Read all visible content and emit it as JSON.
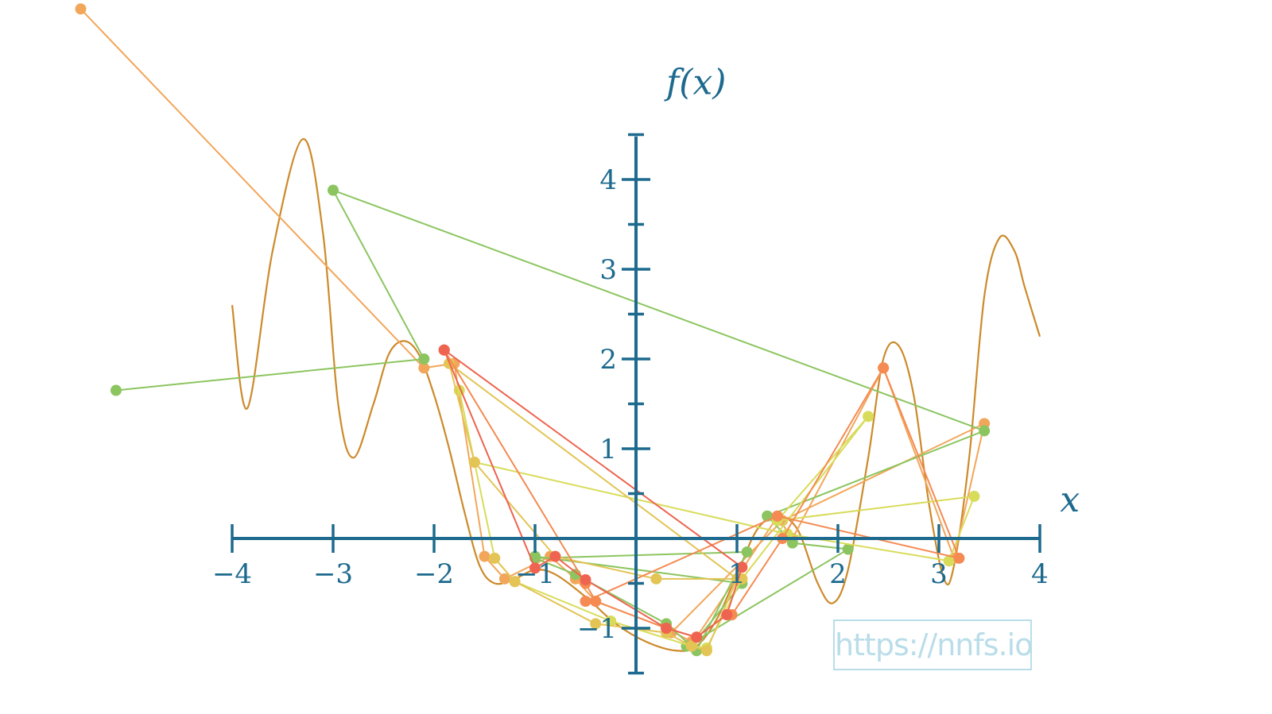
{
  "chart_data": {
    "type": "line",
    "title": "",
    "xlabel": "x",
    "ylabel": "f(x)",
    "xlim": [
      -4,
      4
    ],
    "ylim": [
      -1.5,
      4.5
    ],
    "x_ticks": [
      -4,
      -3,
      -2,
      -1,
      1,
      2,
      3,
      4
    ],
    "x_tick_labels": [
      "−4",
      "−3",
      "−2",
      "−1",
      "1",
      "2",
      "3",
      "4"
    ],
    "y_ticks": [
      -1,
      1,
      2,
      3,
      4
    ],
    "y_tick_labels": [
      "−1",
      "1",
      "2",
      "3",
      "4"
    ],
    "function_curve": {
      "color": "#cc8a2b",
      "x": [
        -4.0,
        -3.85,
        -3.6,
        -3.3,
        -3.1,
        -2.95,
        -2.8,
        -2.6,
        -2.45,
        -2.3,
        -2.15,
        -2.0,
        -1.85,
        -1.7,
        -1.55,
        -1.4,
        -1.2,
        -1.0,
        -0.8,
        -0.5,
        -0.2,
        0.1,
        0.4,
        0.6,
        0.8,
        1.0,
        1.2,
        1.4,
        1.6,
        1.8,
        1.95,
        2.1,
        2.3,
        2.45,
        2.6,
        2.75,
        2.9,
        3.05,
        3.15,
        3.3,
        3.45,
        3.6,
        3.75,
        3.85,
        4.0
      ],
      "y": [
        2.6,
        1.45,
        3.2,
        4.45,
        3.4,
        1.5,
        0.9,
        1.5,
        2.05,
        2.2,
        2.05,
        1.6,
        1.0,
        0.3,
        -0.3,
        -0.5,
        -0.45,
        -0.35,
        -0.4,
        -0.65,
        -0.95,
        -1.15,
        -1.25,
        -1.2,
        -0.9,
        -0.4,
        0.1,
        0.25,
        0.1,
        -0.5,
        -0.72,
        -0.35,
        0.9,
        2.0,
        2.15,
        1.6,
        0.4,
        -0.45,
        -0.3,
        0.9,
        2.7,
        3.35,
        3.2,
        2.8,
        2.25
      ]
    },
    "series": [
      {
        "color": "#f2a65a",
        "x": [
          -5.5,
          -2.1,
          -1.8,
          -1.5,
          -1.3,
          -0.85,
          -0.6,
          -0.4,
          0.3,
          0.55,
          0.6,
          1.4,
          1.55,
          2.45,
          3.15,
          3.45,
          1.45,
          0.35
        ],
        "y": [
          5.9,
          1.9,
          1.95,
          -0.2,
          -0.45,
          -0.2,
          -0.45,
          -0.7,
          -1.0,
          -1.15,
          -1.1,
          0.24,
          0.0,
          1.9,
          -0.22,
          1.28,
          0.2,
          -1.05
        ]
      },
      {
        "color": "#8cc560",
        "x": [
          -5.15,
          -2.1,
          -3.0,
          3.45,
          1.3,
          1.55,
          2.1,
          0.5,
          0.6,
          1.1,
          -1.0,
          -0.6,
          0.3,
          0.55,
          1.05,
          -1.0
        ],
        "y": [
          1.65,
          2.0,
          3.88,
          1.2,
          0.25,
          -0.05,
          -0.12,
          -1.2,
          -1.25,
          -0.15,
          -0.22,
          -0.4,
          -0.95,
          -1.2,
          -0.5,
          -0.2
        ]
      },
      {
        "color": "#d8dc5a",
        "x": [
          -1.75,
          -1.6,
          -1.4,
          -1.2,
          -0.25,
          0.55,
          0.7,
          1.05,
          2.3,
          1.4,
          3.35,
          3.1,
          1.5,
          -1.6
        ],
        "y": [
          1.65,
          0.85,
          -0.22,
          -0.48,
          -0.92,
          -1.2,
          -1.22,
          -0.45,
          1.36,
          0.2,
          0.47,
          -0.25,
          0.05,
          0.85
        ]
      },
      {
        "color": "#e3c455",
        "x": [
          -1.4,
          -1.2,
          -0.4,
          0.3,
          0.55,
          0.7,
          1.0,
          -1.85,
          -1.6,
          -0.8,
          0.2,
          1.05
        ],
        "y": [
          -0.22,
          -0.48,
          -0.95,
          -1.05,
          -1.2,
          -1.25,
          -0.45,
          1.95,
          0.85,
          -0.2,
          -0.45,
          -0.45
        ]
      },
      {
        "color": "#f58a52",
        "x": [
          -1.9,
          -0.5,
          -0.4,
          0.3,
          0.6,
          0.9,
          0.95,
          1.45,
          2.45,
          3.2,
          1.4,
          -0.5
        ],
        "y": [
          2.1,
          -0.5,
          -0.7,
          -1.0,
          -1.1,
          -0.85,
          -0.85,
          0.0,
          1.9,
          -0.22,
          0.25,
          -0.7
        ]
      },
      {
        "color": "#ee6450",
        "x": [
          -1.9,
          -1.0,
          -0.8,
          -0.5,
          0.3,
          0.6,
          0.9,
          1.05,
          -1.9
        ],
        "y": [
          2.1,
          -0.33,
          -0.2,
          -0.46,
          -1.0,
          -1.1,
          -0.85,
          -0.32,
          2.1
        ]
      }
    ],
    "watermark": "https://nnfs.io"
  }
}
